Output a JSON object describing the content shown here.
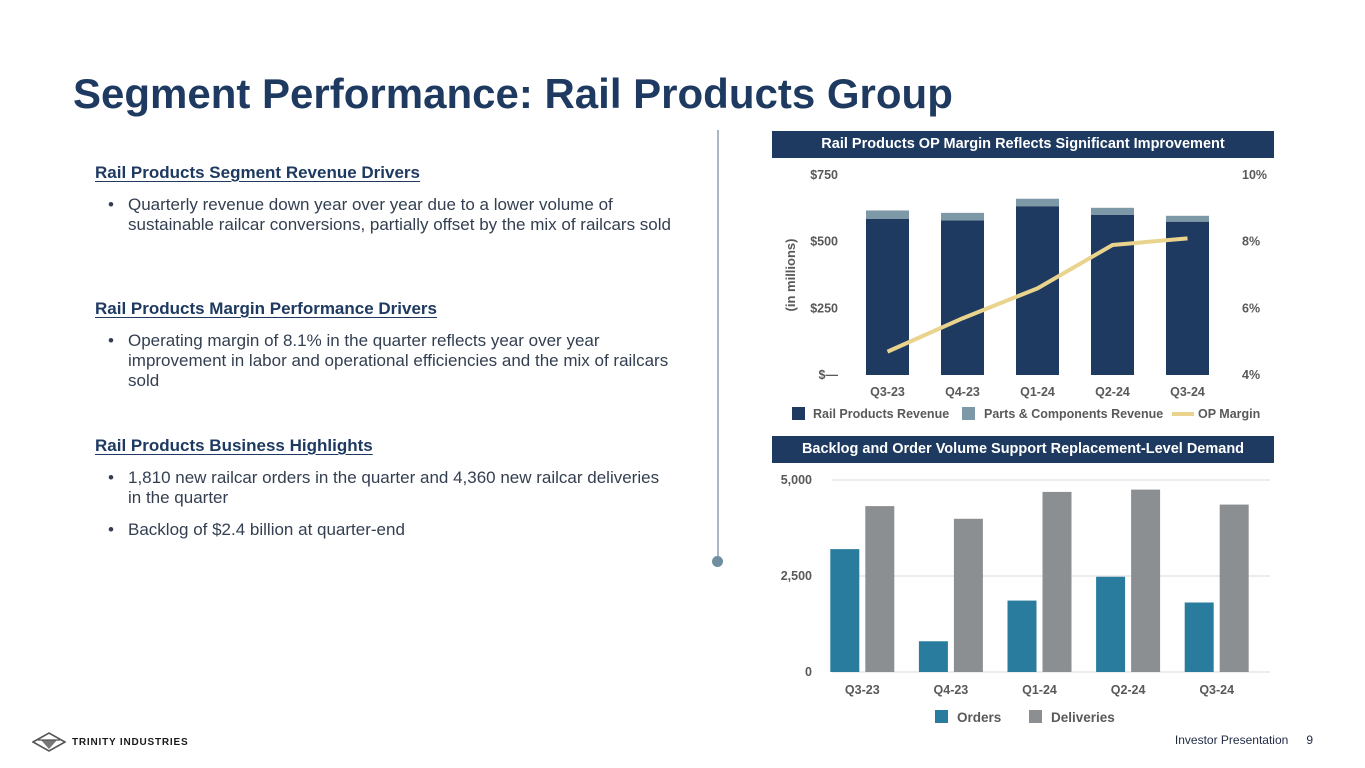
{
  "title": "Segment Performance: Rail Products Group",
  "sections": [
    {
      "heading": "Rail Products Segment Revenue Drivers",
      "bullets": [
        "Quarterly revenue down year over year due to a lower volume of sustainable railcar conversions, partially offset by the mix of railcars sold"
      ]
    },
    {
      "heading": "Rail Products Margin Performance Drivers",
      "bullets": [
        "Operating margin of 8.1% in the quarter reflects year over year improvement in labor and operational efficiencies and the mix of railcars sold"
      ]
    },
    {
      "heading": "Rail Products Business Highlights",
      "bullets": [
        "1,810 new railcar orders in the quarter and 4,360 new railcar deliveries in the quarter",
        "Backlog of $2.4 billion at quarter-end"
      ]
    }
  ],
  "chart_data": [
    {
      "type": "bar",
      "stacked": true,
      "title": "Rail Products OP Margin Reflects Significant Improvement",
      "ylabel": "(in millions)",
      "categories": [
        "Q3-23",
        "Q4-23",
        "Q1-24",
        "Q2-24",
        "Q3-24"
      ],
      "ylim": [
        0,
        750
      ],
      "yticks": [
        0,
        250,
        500,
        750
      ],
      "ytick_labels": [
        "$—",
        "$250",
        "$500",
        "$750"
      ],
      "y2lim": [
        4,
        10
      ],
      "y2ticks": [
        4,
        6,
        8,
        10
      ],
      "y2tick_labels": [
        "4%",
        "6%",
        "8%",
        "10%"
      ],
      "series": [
        {
          "name": "Rail Products Revenue",
          "kind": "bar",
          "axis": "left",
          "color": "#1e3a60",
          "values": [
            585,
            580,
            633,
            600,
            575
          ]
        },
        {
          "name": "Parts & Components Revenue",
          "kind": "bar",
          "axis": "left",
          "color": "#7d98a6",
          "values": [
            32,
            28,
            28,
            27,
            22
          ]
        },
        {
          "name": "OP Margin",
          "kind": "line",
          "axis": "right",
          "color": "#ead38c",
          "values": [
            4.7,
            5.7,
            6.6,
            7.9,
            8.1
          ]
        }
      ]
    },
    {
      "type": "bar",
      "title": "Backlog and Order Volume Support Replacement-Level Demand",
      "categories": [
        "Q3-23",
        "Q4-23",
        "Q1-24",
        "Q2-24",
        "Q3-24"
      ],
      "ylim": [
        0,
        5000
      ],
      "yticks": [
        0,
        2500,
        5000
      ],
      "ytick_labels": [
        "0",
        "2,500",
        "5,000"
      ],
      "series": [
        {
          "name": "Orders",
          "color": "#2a7c9e",
          "values": [
            3200,
            800,
            1860,
            2480,
            1810
          ]
        },
        {
          "name": "Deliveries",
          "color": "#8c8f92",
          "values": [
            4320,
            3990,
            4690,
            4750,
            4360
          ]
        }
      ]
    }
  ],
  "logo_text": "TRINITY INDUSTRIES",
  "footer": {
    "label": "Investor Presentation",
    "page": "9"
  }
}
